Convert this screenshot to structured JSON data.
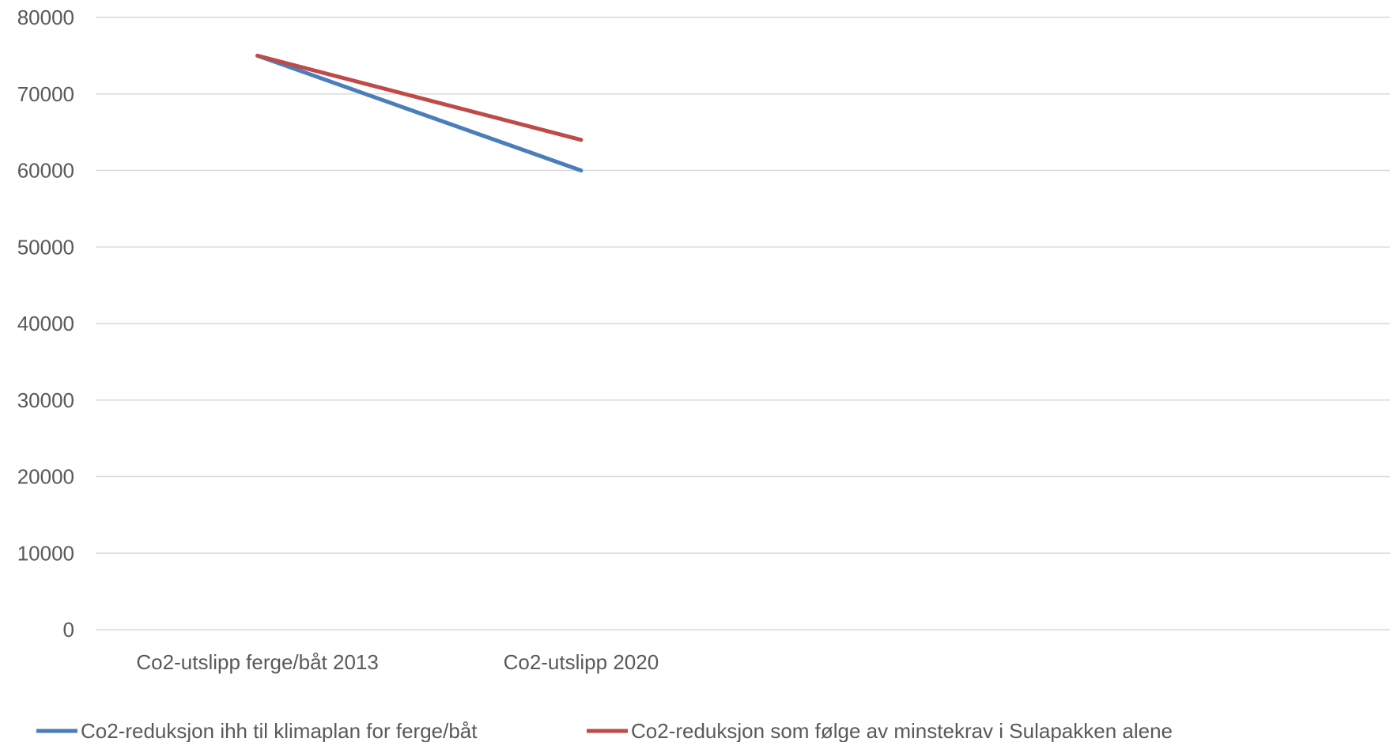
{
  "chart_data": {
    "type": "line",
    "title": "",
    "xlabel": "",
    "ylabel": "",
    "categories": [
      "Co2-utslipp ferge/båt 2013",
      "Co2-utslipp 2020"
    ],
    "category_slots": 4,
    "ylim": [
      0,
      80000
    ],
    "yticks": [
      "0",
      "10000",
      "20000",
      "30000",
      "40000",
      "50000",
      "60000",
      "70000",
      "80000"
    ],
    "grid": true,
    "legend_position": "bottom",
    "series": [
      {
        "name": "Co2-reduksjon ihh til klimaplan for ferge/båt",
        "color": "#4a7ebb",
        "values": [
          75000,
          60000
        ]
      },
      {
        "name": "Co2-reduksjon som følge av minstekrav i Sulapakken alene",
        "color": "#be4b48",
        "values": [
          75000,
          64000
        ]
      }
    ]
  }
}
